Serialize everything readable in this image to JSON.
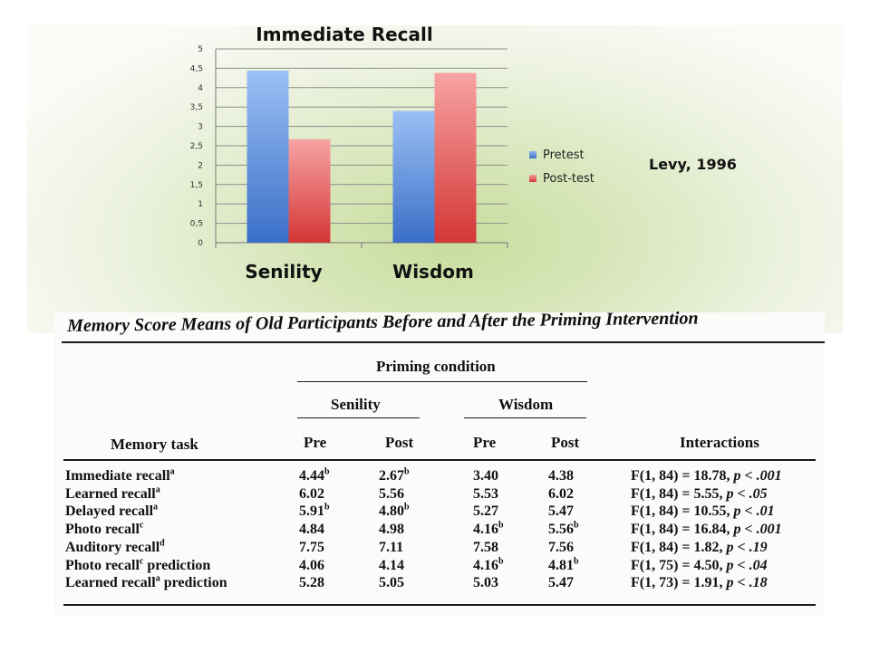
{
  "chart_data": {
    "type": "bar",
    "title": "Immediate Recall",
    "categories": [
      "Senility",
      "Wisdom"
    ],
    "series": [
      {
        "name": "Pretest",
        "values": [
          4.44,
          3.4
        ],
        "color": "#4f81bd"
      },
      {
        "name": "Post-test",
        "values": [
          2.67,
          4.38
        ],
        "color": "#e04b4b"
      }
    ],
    "ylim": [
      0,
      5
    ],
    "yticks": [
      "0",
      "0,5",
      "1",
      "1,5",
      "2",
      "2,5",
      "3",
      "3,5",
      "4",
      "4,5",
      "5"
    ],
    "grid": true,
    "legend_position": "right"
  },
  "citation": "Levy, 1996",
  "table": {
    "title": "Memory Score Means of Old Participants Before and After the Priming Intervention",
    "priming_condition": "Priming condition",
    "group_senility": "Senility",
    "group_wisdom": "Wisdom",
    "col_task": "Memory task",
    "col_pre": "Pre",
    "col_post": "Post",
    "col_interactions": "Interactions",
    "rows": [
      {
        "task": "Immediate recall",
        "task_sup": "a",
        "sen_pre": "4.44",
        "sen_pre_sup": "b",
        "sen_post": "2.67",
        "sen_post_sup": "b",
        "wis_pre": "3.40",
        "wis_pre_sup": "",
        "wis_post": "4.38",
        "wis_post_sup": "",
        "df": "F(1, 84) = 18.78, ",
        "p": "p < .001"
      },
      {
        "task": "Learned recall",
        "task_sup": "a",
        "sen_pre": "6.02",
        "sen_pre_sup": "",
        "sen_post": "5.56",
        "sen_post_sup": "",
        "wis_pre": "5.53",
        "wis_pre_sup": "",
        "wis_post": "6.02",
        "wis_post_sup": "",
        "df": "F(1, 84) = 5.55, ",
        "p": "p < .05"
      },
      {
        "task": "Delayed recall",
        "task_sup": "a",
        "sen_pre": "5.91",
        "sen_pre_sup": "b",
        "sen_post": "4.80",
        "sen_post_sup": "b",
        "wis_pre": "5.27",
        "wis_pre_sup": "",
        "wis_post": "5.47",
        "wis_post_sup": "",
        "df": "F(1, 84) = 10.55, ",
        "p": "p < .01"
      },
      {
        "task": "Photo recall",
        "task_sup": "c",
        "sen_pre": "4.84",
        "sen_pre_sup": "",
        "sen_post": "4.98",
        "sen_post_sup": "",
        "wis_pre": "4.16",
        "wis_pre_sup": "b",
        "wis_post": "5.56",
        "wis_post_sup": "b",
        "df": "F(1, 84) = 16.84, ",
        "p": "p < .001"
      },
      {
        "task": "Auditory recall",
        "task_sup": "d",
        "sen_pre": "7.75",
        "sen_pre_sup": "",
        "sen_post": "7.11",
        "sen_post_sup": "",
        "wis_pre": "7.58",
        "wis_pre_sup": "",
        "wis_post": "7.56",
        "wis_post_sup": "",
        "df": "F(1, 84) = 1.82, ",
        "p": "p < .19"
      },
      {
        "task": "Photo recall",
        "task_sup": "c",
        "task_suffix": " prediction",
        "sen_pre": "4.06",
        "sen_pre_sup": "",
        "sen_post": "4.14",
        "sen_post_sup": "",
        "wis_pre": "4.16",
        "wis_pre_sup": "b",
        "wis_post": "4.81",
        "wis_post_sup": "b",
        "df": "F(1, 75) = 4.50, ",
        "p": "p < .04"
      },
      {
        "task": "Learned recall",
        "task_sup": "a",
        "task_suffix": " prediction",
        "sen_pre": "5.28",
        "sen_pre_sup": "",
        "sen_post": "5.05",
        "sen_post_sup": "",
        "wis_pre": "5.03",
        "wis_pre_sup": "",
        "wis_post": "5.47",
        "wis_post_sup": "",
        "df": "F(1, 73) = 1.91, ",
        "p": "p < .18"
      }
    ]
  }
}
